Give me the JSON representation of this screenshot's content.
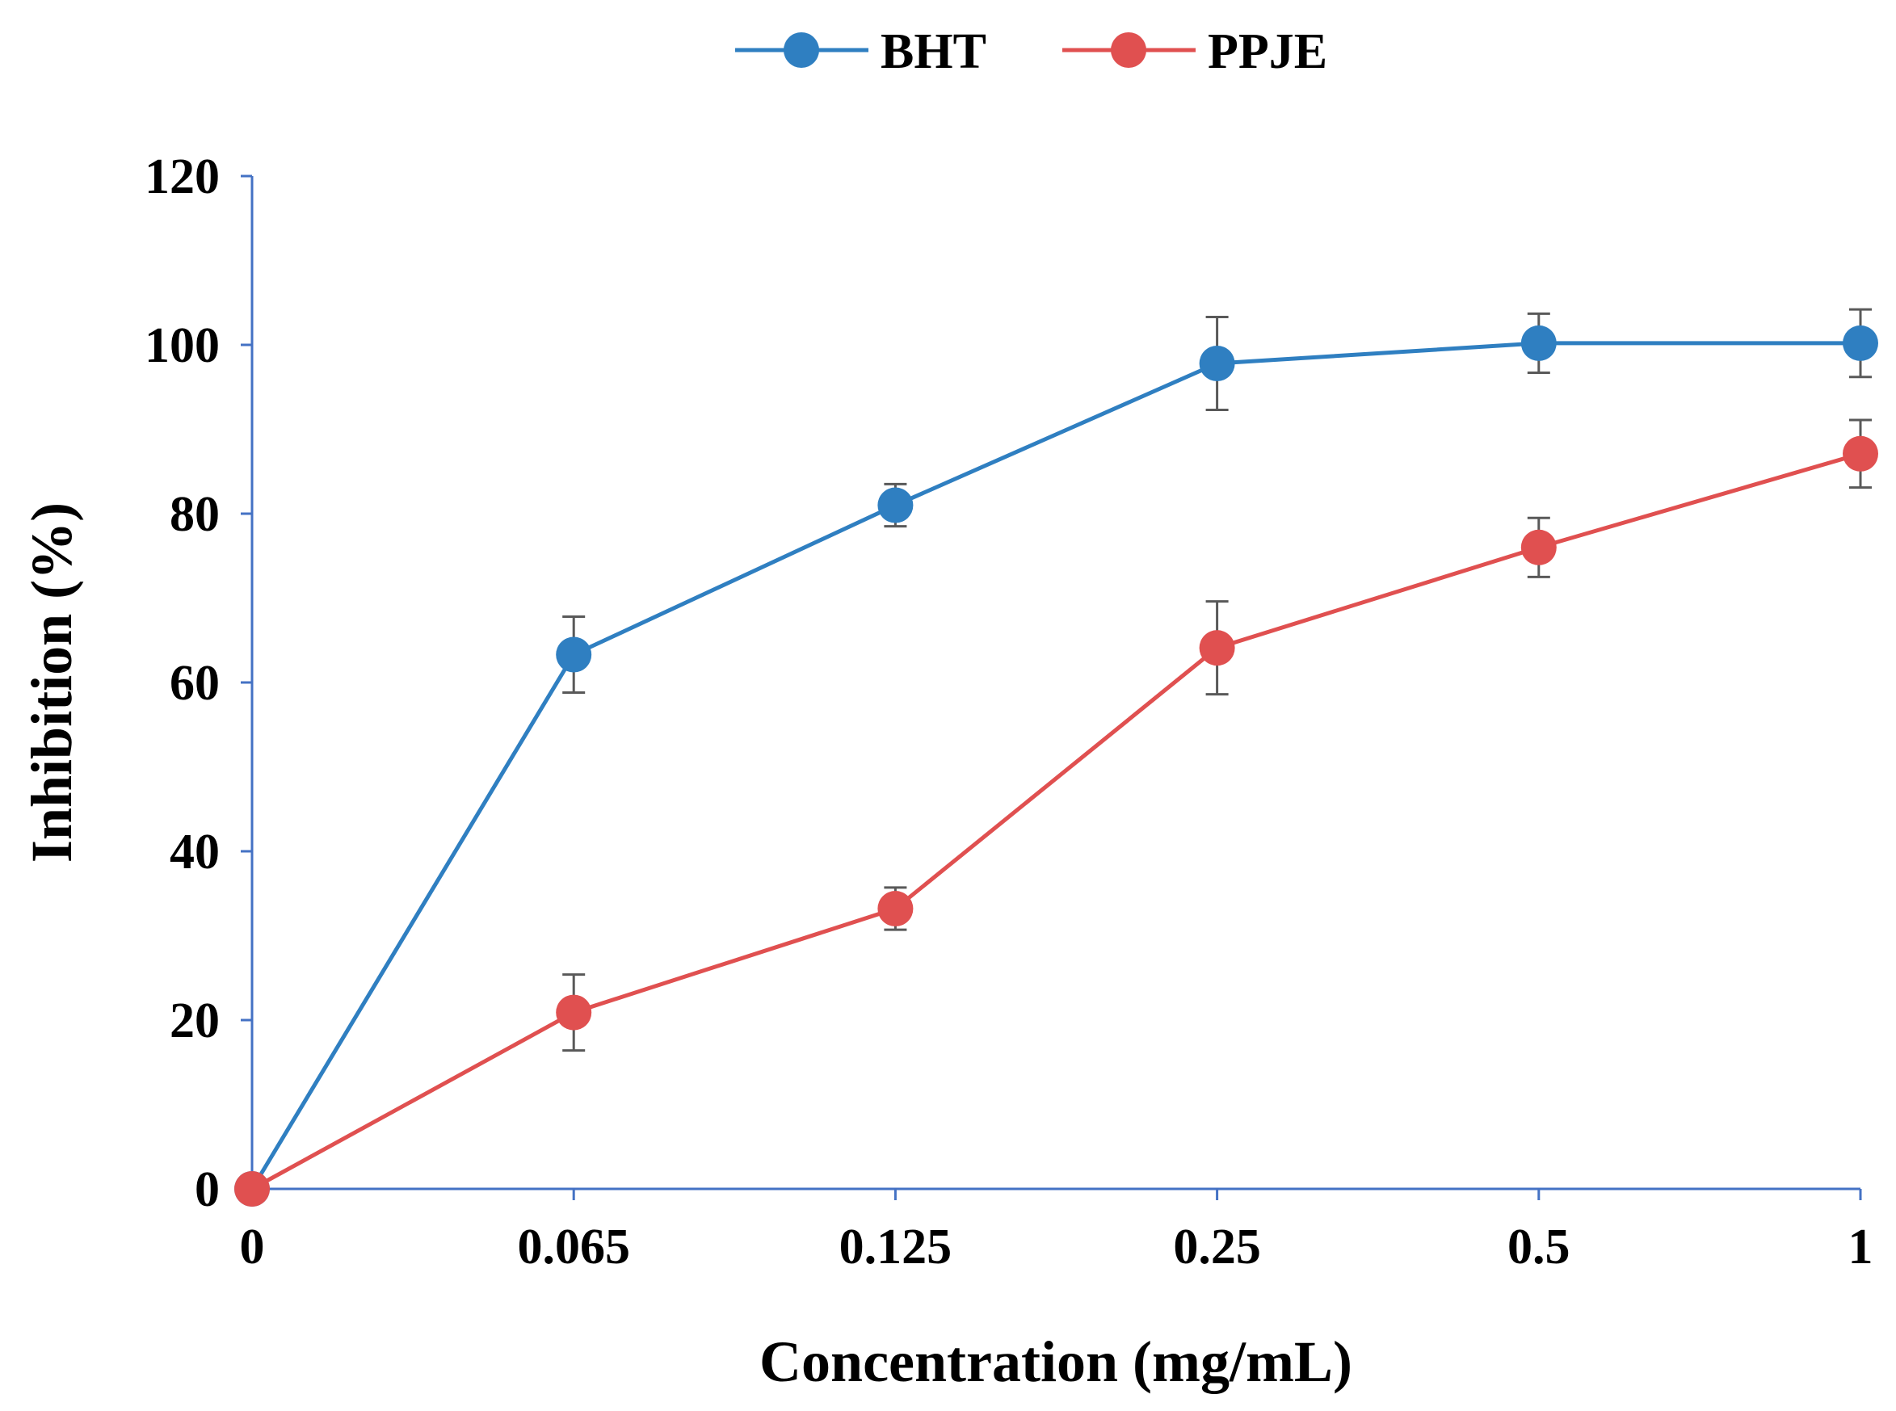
{
  "chart_data": {
    "type": "line",
    "title": "",
    "xlabel": "Concentration (mg/mL)",
    "ylabel": "Inhibition (%)",
    "categories": [
      "0",
      "0.065",
      "0.125",
      "0.25",
      "0.5",
      "1"
    ],
    "ylim": [
      0,
      120
    ],
    "yticks": [
      "0",
      "20",
      "40",
      "60",
      "80",
      "100",
      "120"
    ],
    "grid": false,
    "legend_position": "top-center",
    "series": [
      {
        "name": "BHT",
        "color": "#2f7fc1",
        "values": [
          0,
          63.3,
          81.0,
          97.8,
          100.2,
          100.2
        ],
        "errors": [
          0,
          4.5,
          2.5,
          5.5,
          3.5,
          4.0
        ]
      },
      {
        "name": "PPJE",
        "color": "#e05050",
        "values": [
          0,
          20.9,
          33.2,
          64.1,
          76.0,
          87.1
        ],
        "errors": [
          0,
          4.5,
          2.5,
          5.5,
          3.5,
          4.0
        ]
      }
    ]
  }
}
